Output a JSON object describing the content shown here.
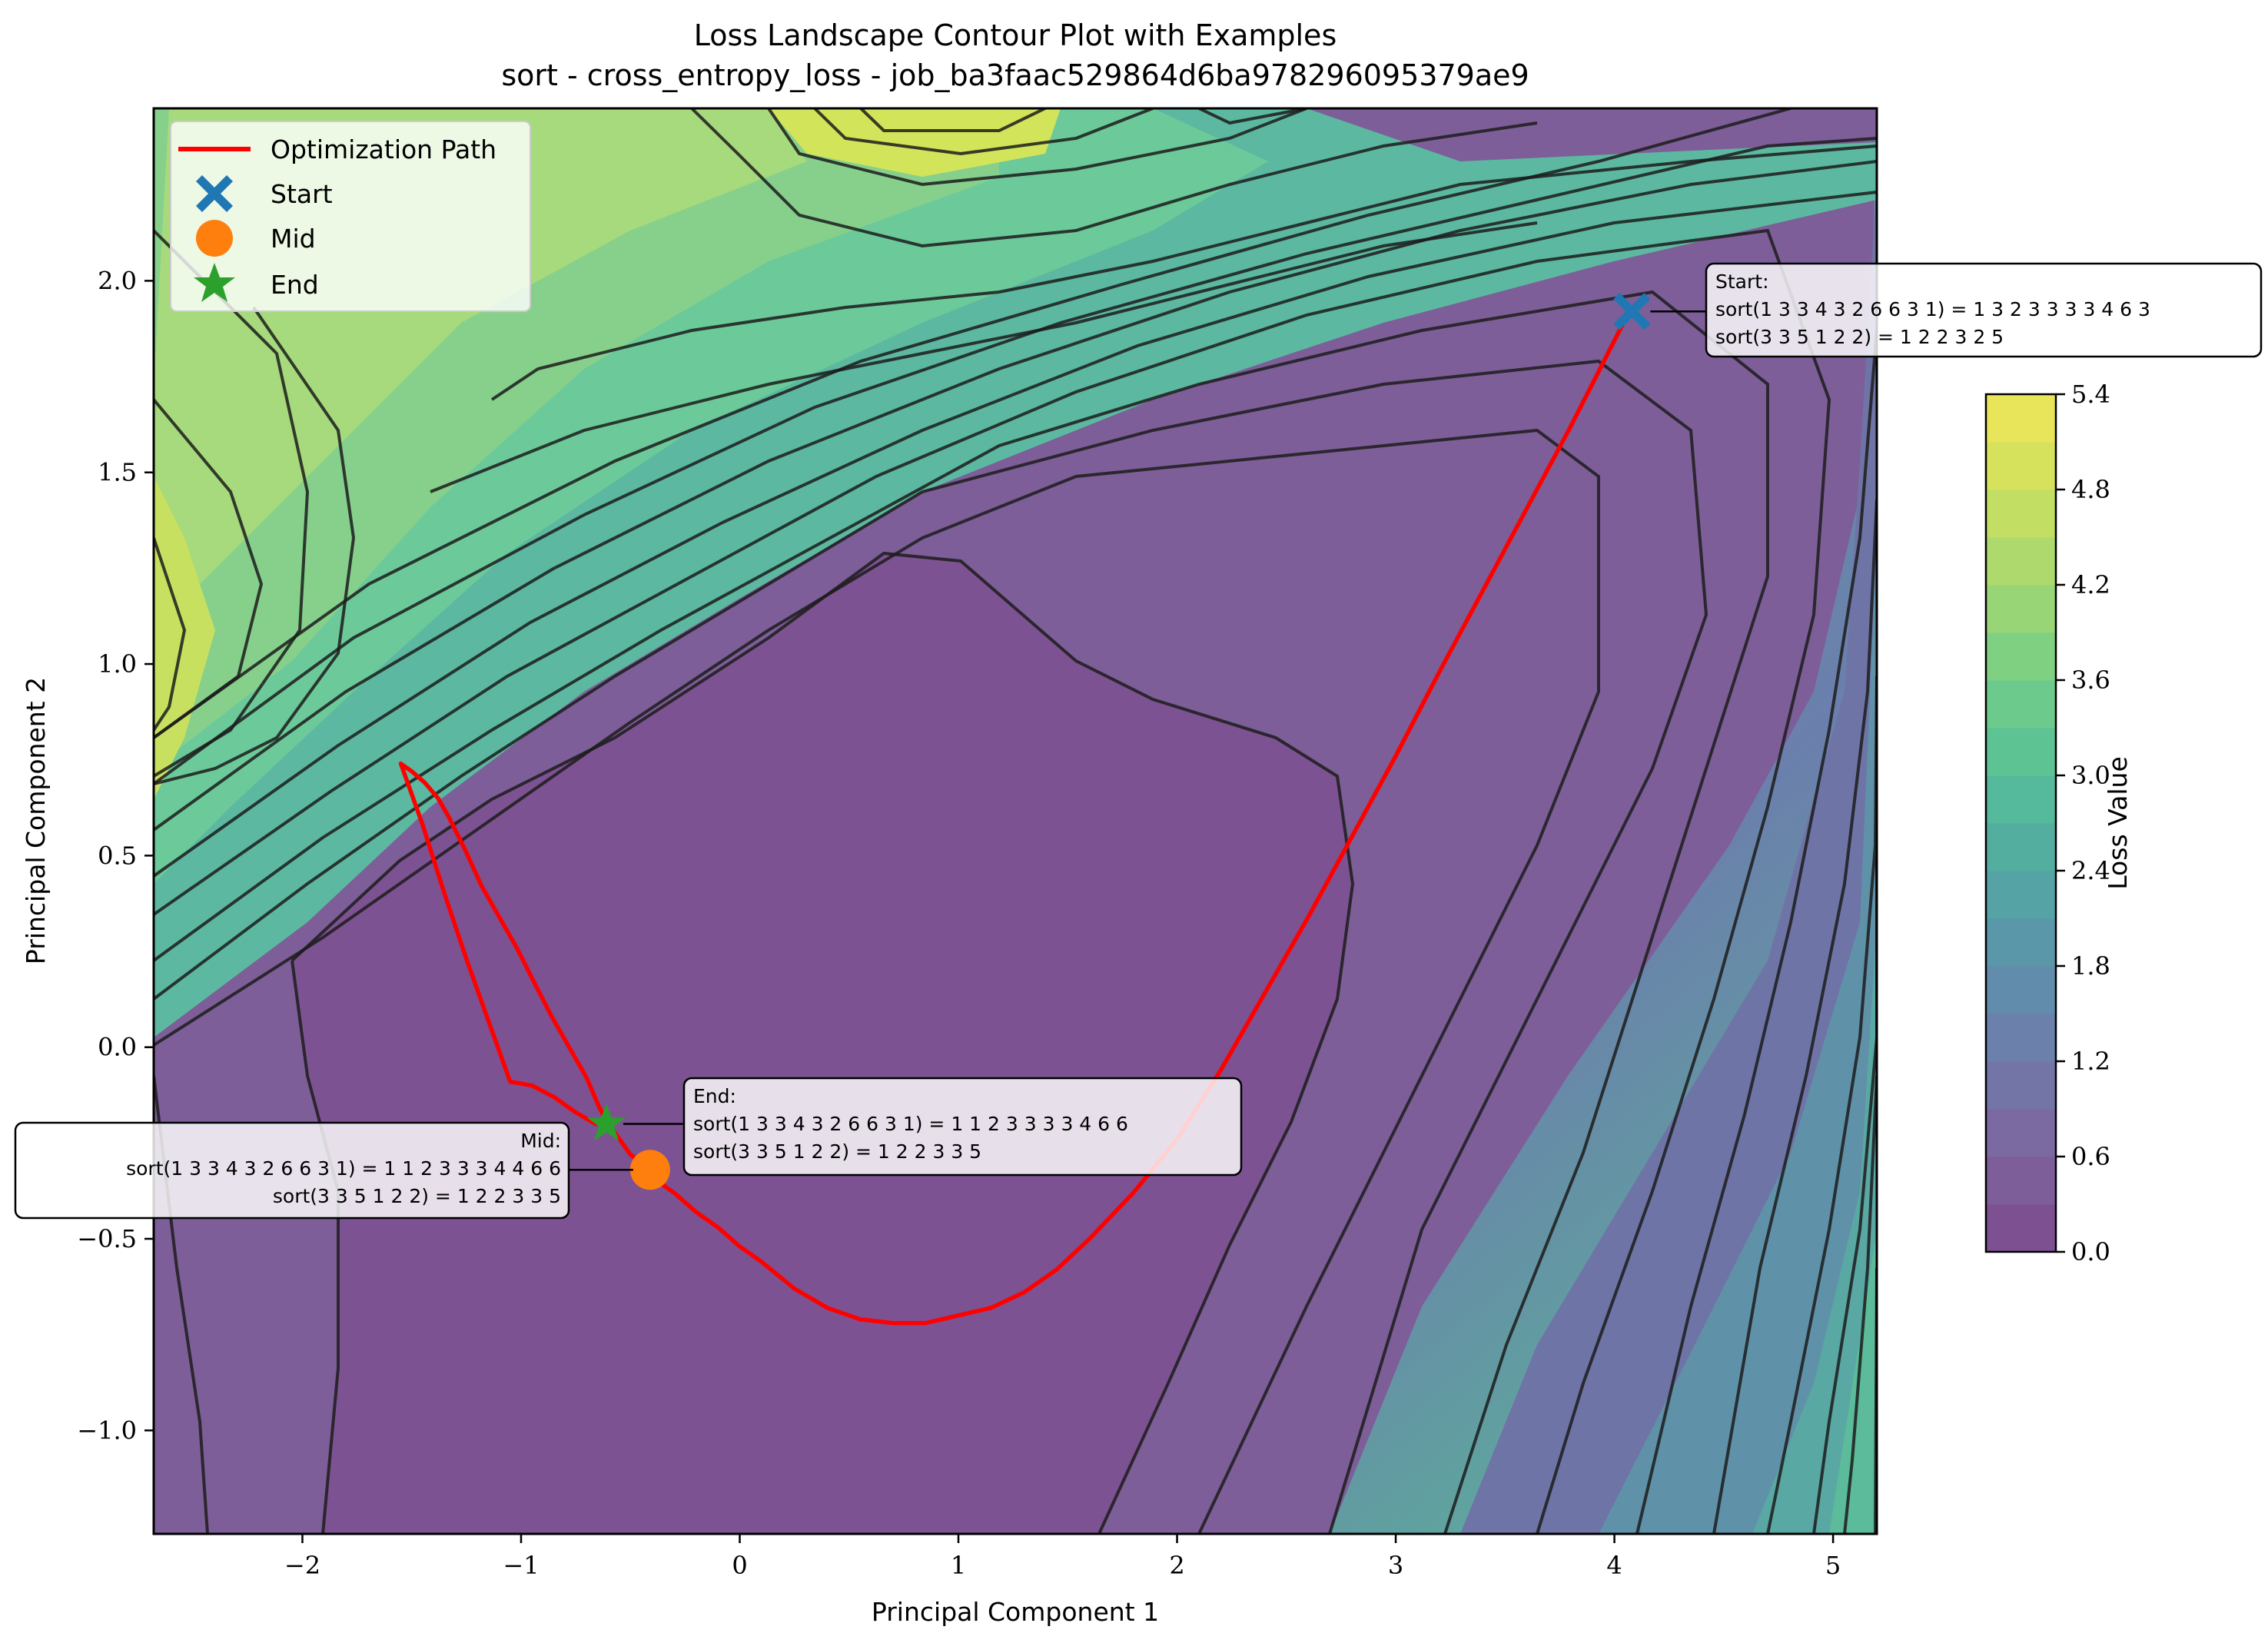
{
  "chart_data": {
    "type": "contour",
    "title": "Loss Landscape Contour Plot with Examples",
    "subtitle": "sort - cross_entropy_loss - job_ba3faac529864d6ba978296095379ae9",
    "xlabel": "Principal Component 1",
    "ylabel": "Principal Component 2",
    "xlim": [
      -2.68,
      5.2
    ],
    "ylim": [
      -1.27,
      2.45
    ],
    "xticks": [
      -2,
      -1,
      0,
      1,
      2,
      3,
      4,
      5
    ],
    "xtick_labels": [
      "−2",
      "−1",
      "0",
      "1",
      "2",
      "3",
      "4",
      "5"
    ],
    "yticks": [
      -1.0,
      -0.5,
      0.0,
      0.5,
      1.0,
      1.5,
      2.0
    ],
    "ytick_labels": [
      "−1.0",
      "−0.5",
      "0.0",
      "0.5",
      "1.0",
      "1.5",
      "2.0"
    ],
    "grid": false,
    "colorbar": {
      "label": "Loss Value",
      "colormap": "viridis",
      "alpha": 0.7,
      "range": [
        0.0,
        5.4
      ],
      "levels": [
        0.0,
        0.3,
        0.6,
        0.9,
        1.2,
        1.5,
        1.8,
        2.1,
        2.4,
        2.7,
        3.0,
        3.3,
        3.6,
        3.9,
        4.2,
        4.5,
        4.8,
        5.1,
        5.4
      ],
      "ticks": [
        0.0,
        0.6,
        1.2,
        1.8,
        2.4,
        3.0,
        3.6,
        4.2,
        4.8,
        5.4
      ],
      "tick_labels": [
        "0.0",
        "0.6",
        "1.2",
        "1.8",
        "2.4",
        "3.0",
        "3.6",
        "4.2",
        "4.8",
        "5.4"
      ]
    },
    "legend": {
      "placement": "upper-left",
      "entries": [
        {
          "label": "Optimization Path",
          "marker": "line",
          "color": "#ff0000"
        },
        {
          "label": "Start",
          "marker": "X",
          "color": "#1f77b4"
        },
        {
          "label": "Mid",
          "marker": "o",
          "color": "#ff7f0e"
        },
        {
          "label": "End",
          "marker": "*",
          "color": "#2ca02c"
        }
      ]
    },
    "points": {
      "start": {
        "x": 4.08,
        "y": 1.92
      },
      "mid": {
        "x": -0.41,
        "y": -0.32
      },
      "end": {
        "x": -0.61,
        "y": -0.2
      }
    },
    "path": {
      "color": "#ff0000",
      "x": [
        4.05,
        3.8,
        3.5,
        3.2,
        3.0,
        2.8,
        2.6,
        2.4,
        2.2,
        2.0,
        1.8,
        1.6,
        1.45,
        1.3,
        1.15,
        1.0,
        0.85,
        0.7,
        0.55,
        0.4,
        0.25,
        0.1,
        0.0,
        -0.1,
        -0.2,
        -0.3,
        -0.4,
        -0.41,
        -0.5,
        -0.55,
        -0.6,
        -0.64,
        -0.7,
        -0.78,
        -0.86,
        -0.95,
        -1.02,
        -1.1,
        -1.18,
        -1.26,
        -1.33,
        -1.38,
        -1.44,
        -1.5,
        -1.55,
        -1.45,
        -1.35,
        -1.25,
        -1.15,
        -1.05,
        -0.95,
        -0.85,
        -0.75,
        -0.66,
        -0.61
      ],
      "y": [
        1.9,
        1.62,
        1.3,
        0.98,
        0.76,
        0.55,
        0.34,
        0.14,
        -0.06,
        -0.24,
        -0.38,
        -0.5,
        -0.58,
        -0.64,
        -0.68,
        -0.7,
        -0.72,
        -0.72,
        -0.71,
        -0.68,
        -0.63,
        -0.56,
        -0.52,
        -0.47,
        -0.43,
        -0.38,
        -0.34,
        -0.32,
        -0.28,
        -0.24,
        -0.2,
        -0.16,
        -0.08,
        0.0,
        0.08,
        0.18,
        0.26,
        0.34,
        0.42,
        0.52,
        0.6,
        0.65,
        0.69,
        0.72,
        0.74,
        0.58,
        0.4,
        0.23,
        0.07,
        -0.09,
        -0.1,
        -0.13,
        -0.17,
        -0.2,
        -0.2
      ]
    },
    "annotations": [
      {
        "id": "start",
        "header": "Start:",
        "line1": "sort(1 3 3 4 3 2 6 6 3 1) = 1 3 2 3 3 3 3 4 6 3",
        "line2": "sort(3 3 5 1 2 2) = 1 2 2 3 2 5",
        "align": "left"
      },
      {
        "id": "end",
        "header": "End:",
        "line1": "sort(1 3 3 4 3 2 6 6 3 1) = 1 1 2 3 3 3 3 4 6 6",
        "line2": "sort(3 3 5 1 2 2) = 1 2 2 3 3 5",
        "align": "left"
      },
      {
        "id": "mid",
        "header": "Mid:",
        "line1": "sort(1 3 3 4 3 2 6 6 3 1) = 1 1 2 3 3 3 4 4 6 6",
        "line2": "sort(3 3 5 1 2 2) = 1 2 2 3 3 5",
        "align": "right"
      }
    ]
  }
}
